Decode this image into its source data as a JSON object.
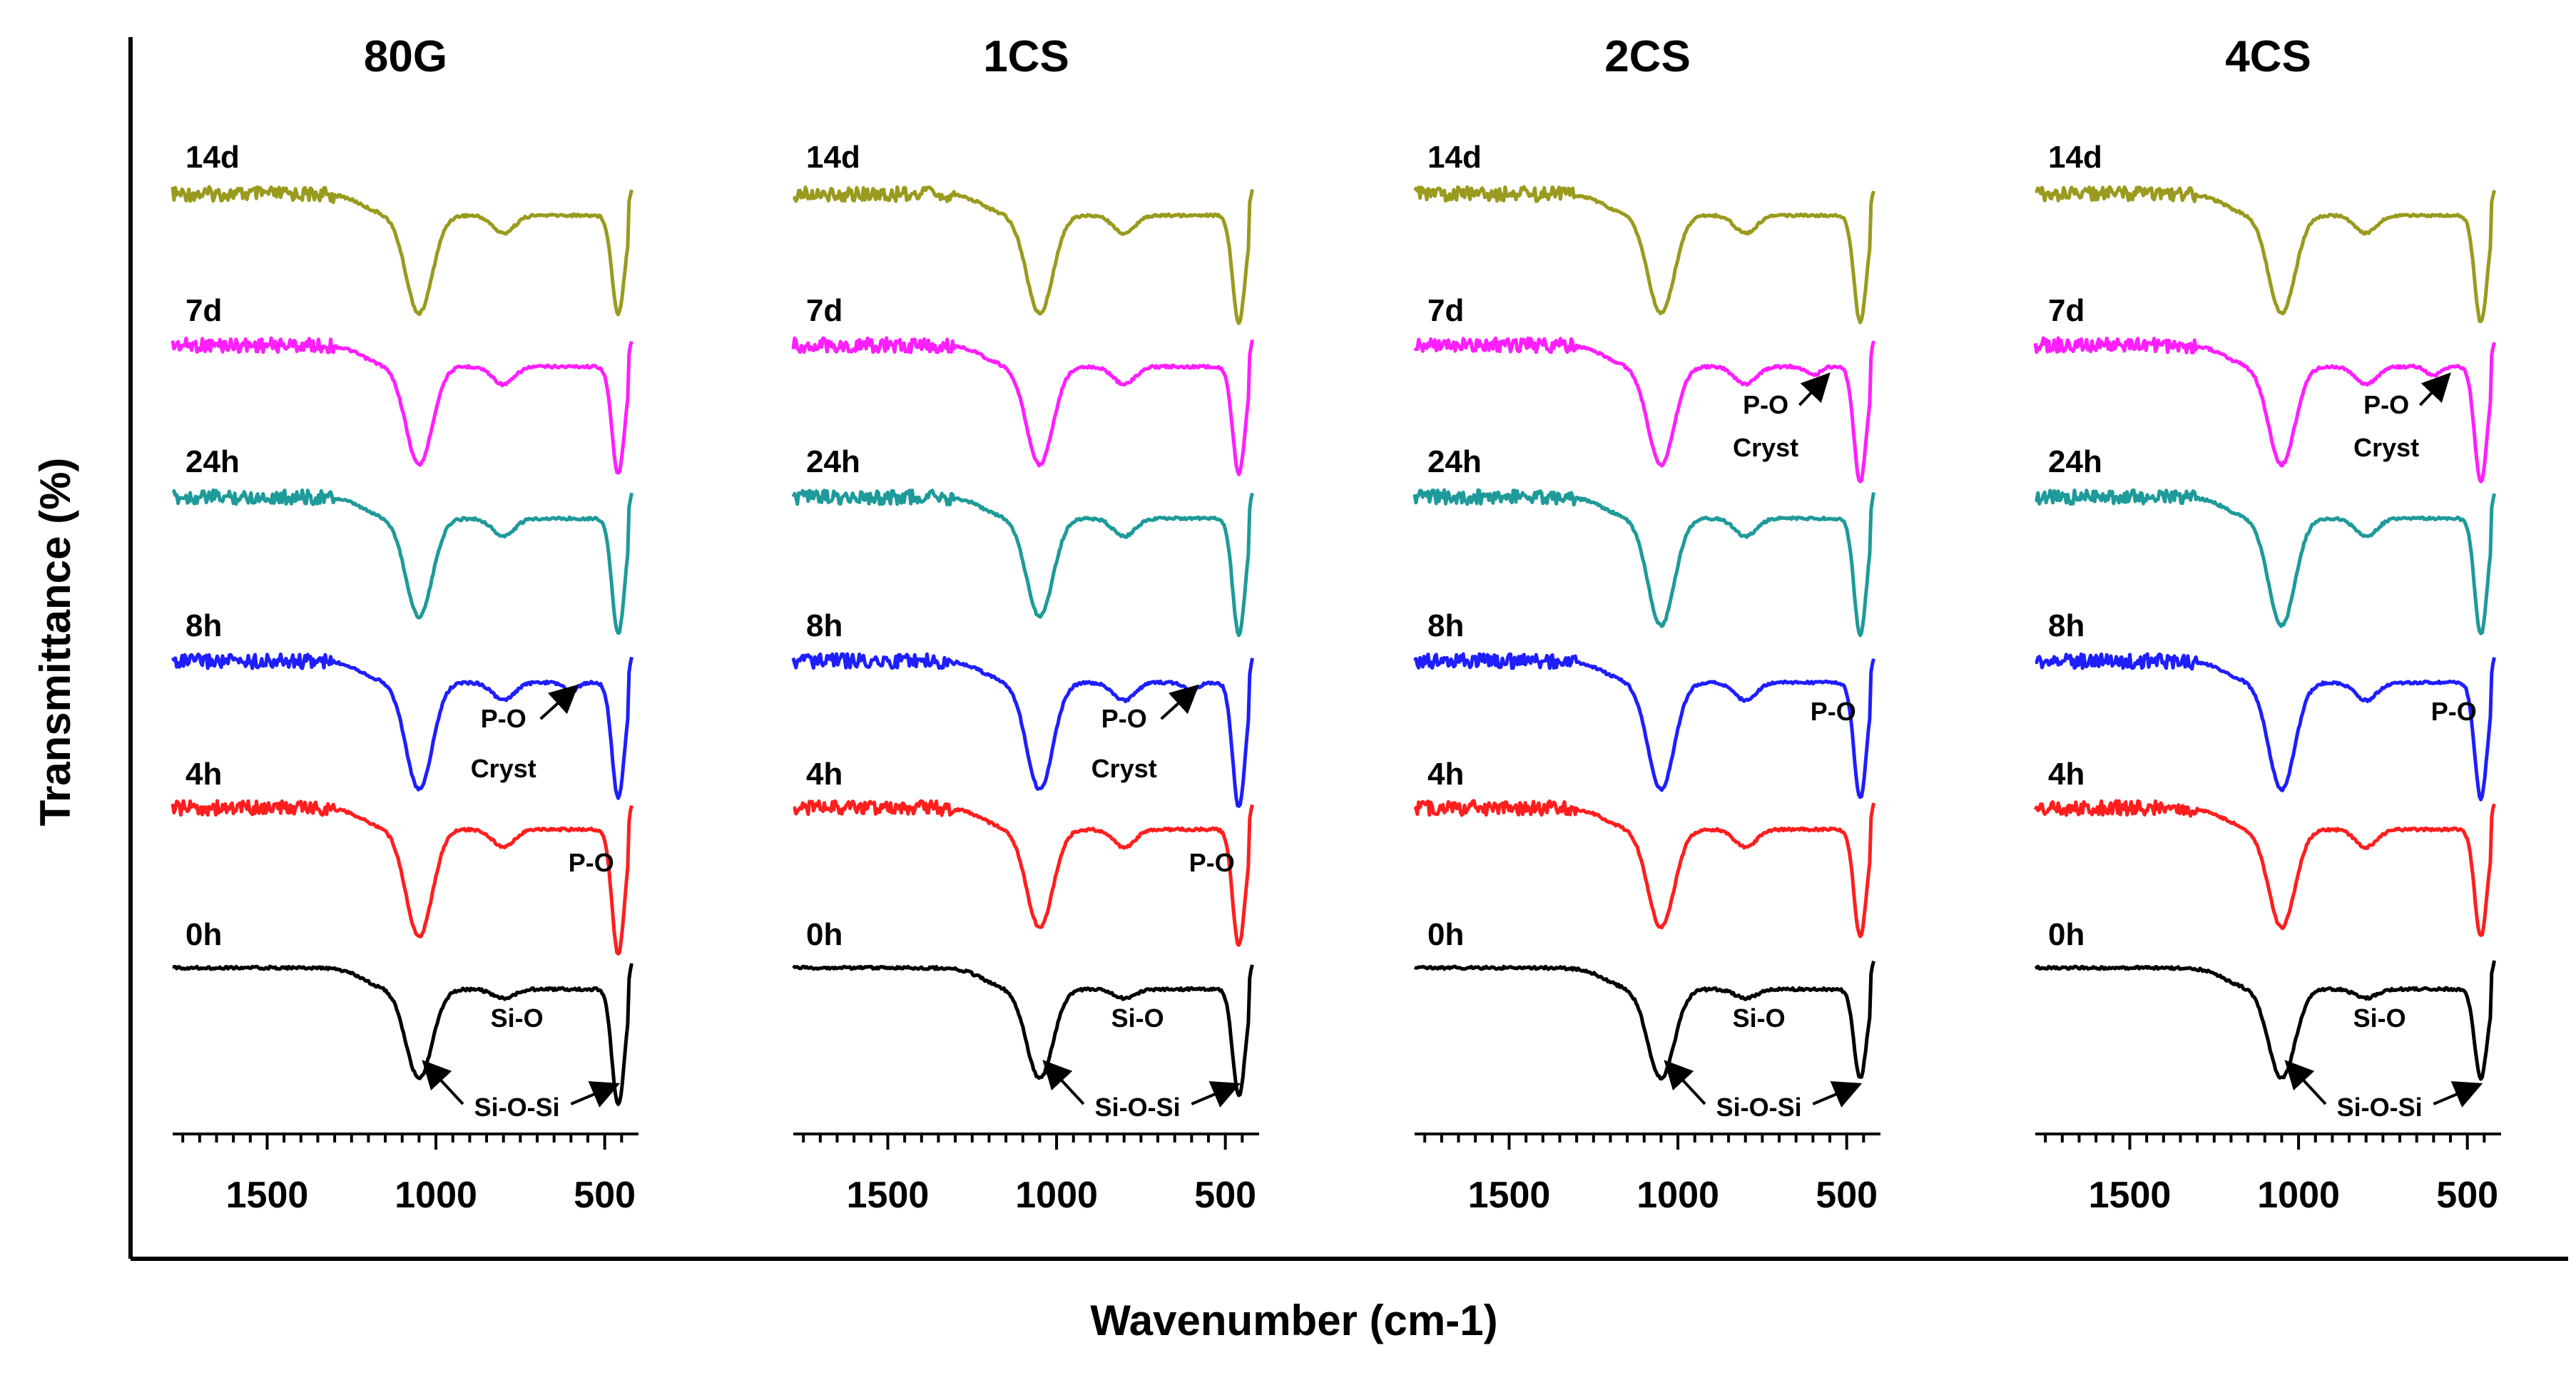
{
  "chart_data": {
    "type": "line",
    "ylabel": "Transmittance (%)",
    "xlabel": "Wavenumber (cm-1)",
    "xlim": [
      1780,
      400
    ],
    "x_ticks": [
      1500,
      1000,
      500
    ],
    "time_points": [
      "14d",
      "7d",
      "24h",
      "8h",
      "4h",
      "0h"
    ],
    "series_colors": {
      "14d": "#9a9a1e",
      "7d": "#ff1eff",
      "24h": "#1e9a9a",
      "8h": "#1e1eff",
      "4h": "#ff1e1e",
      "0h": "#000000"
    },
    "panels": [
      {
        "title": "80G",
        "series": [
          {
            "name": "14d",
            "bands": [
              [
                1050,
                0.55
              ],
              [
                800,
                0.1
              ],
              [
                460,
                0.55
              ]
            ],
            "crystal_band": false
          },
          {
            "name": "7d",
            "bands": [
              [
                1050,
                0.55
              ],
              [
                800,
                0.1
              ],
              [
                460,
                0.6
              ]
            ],
            "crystal_band": false
          },
          {
            "name": "24h",
            "bands": [
              [
                1050,
                0.55
              ],
              [
                800,
                0.1
              ],
              [
                460,
                0.65
              ]
            ],
            "crystal_band": false
          },
          {
            "name": "8h",
            "bands": [
              [
                1050,
                0.6
              ],
              [
                800,
                0.1
              ],
              [
                600,
                0.05
              ],
              [
                460,
                0.65
              ]
            ],
            "crystal_band": true
          },
          {
            "name": "4h",
            "bands": [
              [
                1050,
                0.6
              ],
              [
                800,
                0.1
              ],
              [
                460,
                0.7
              ]
            ],
            "crystal_band": false
          },
          {
            "name": "0h",
            "bands": [
              [
                1050,
                0.5
              ],
              [
                800,
                0.05
              ],
              [
                460,
                0.65
              ]
            ],
            "crystal_band": false
          }
        ],
        "annotations": {
          "si_o": "Si-O",
          "si_o_si": "Si-O-Si",
          "p_o_4h": "P-O",
          "p_o_8h": "P-O",
          "cryst_8h": "Cryst"
        }
      },
      {
        "title": "1CS",
        "series": [
          {
            "name": "14d",
            "bands": [
              [
                1050,
                0.55
              ],
              [
                800,
                0.1
              ],
              [
                460,
                0.6
              ]
            ],
            "crystal_band": false
          },
          {
            "name": "7d",
            "bands": [
              [
                1050,
                0.55
              ],
              [
                800,
                0.1
              ],
              [
                460,
                0.6
              ]
            ],
            "crystal_band": false
          },
          {
            "name": "24h",
            "bands": [
              [
                1050,
                0.55
              ],
              [
                800,
                0.1
              ],
              [
                460,
                0.65
              ]
            ],
            "crystal_band": false
          },
          {
            "name": "8h",
            "bands": [
              [
                1050,
                0.6
              ],
              [
                800,
                0.1
              ],
              [
                600,
                0.05
              ],
              [
                460,
                0.7
              ]
            ],
            "crystal_band": true
          },
          {
            "name": "4h",
            "bands": [
              [
                1050,
                0.55
              ],
              [
                800,
                0.1
              ],
              [
                460,
                0.65
              ]
            ],
            "crystal_band": false
          },
          {
            "name": "0h",
            "bands": [
              [
                1050,
                0.5
              ],
              [
                800,
                0.05
              ],
              [
                460,
                0.6
              ]
            ],
            "crystal_band": false
          }
        ],
        "annotations": {
          "si_o": "Si-O",
          "si_o_si": "Si-O-Si",
          "p_o_4h": "P-O",
          "p_o_8h": "P-O",
          "cryst_8h": "Cryst"
        }
      },
      {
        "title": "2CS",
        "series": [
          {
            "name": "14d",
            "bands": [
              [
                1050,
                0.55
              ],
              [
                800,
                0.1
              ],
              [
                460,
                0.6
              ]
            ],
            "crystal_band": false
          },
          {
            "name": "7d",
            "bands": [
              [
                1050,
                0.55
              ],
              [
                800,
                0.1
              ],
              [
                600,
                0.05
              ],
              [
                460,
                0.65
              ]
            ],
            "crystal_band": true
          },
          {
            "name": "24h",
            "bands": [
              [
                1050,
                0.6
              ],
              [
                800,
                0.1
              ],
              [
                460,
                0.65
              ]
            ],
            "crystal_band": false
          },
          {
            "name": "8h",
            "bands": [
              [
                1050,
                0.6
              ],
              [
                800,
                0.1
              ],
              [
                460,
                0.65
              ]
            ],
            "crystal_band": false
          },
          {
            "name": "4h",
            "bands": [
              [
                1050,
                0.55
              ],
              [
                800,
                0.1
              ],
              [
                460,
                0.6
              ]
            ],
            "crystal_band": false
          },
          {
            "name": "0h",
            "bands": [
              [
                1050,
                0.5
              ],
              [
                800,
                0.05
              ],
              [
                460,
                0.5
              ]
            ],
            "crystal_band": false
          }
        ],
        "annotations": {
          "si_o": "Si-O",
          "si_o_si": "Si-O-Si",
          "p_o_8h": "P-O",
          "p_o_7d": "P-O",
          "cryst_7d": "Cryst"
        }
      },
      {
        "title": "4CS",
        "series": [
          {
            "name": "14d",
            "bands": [
              [
                1050,
                0.55
              ],
              [
                800,
                0.1
              ],
              [
                460,
                0.6
              ]
            ],
            "crystal_band": false
          },
          {
            "name": "7d",
            "bands": [
              [
                1050,
                0.55
              ],
              [
                800,
                0.1
              ],
              [
                600,
                0.05
              ],
              [
                460,
                0.65
              ]
            ],
            "crystal_band": true
          },
          {
            "name": "24h",
            "bands": [
              [
                1050,
                0.6
              ],
              [
                800,
                0.1
              ],
              [
                460,
                0.65
              ]
            ],
            "crystal_band": false
          },
          {
            "name": "8h",
            "bands": [
              [
                1050,
                0.6
              ],
              [
                800,
                0.1
              ],
              [
                460,
                0.65
              ]
            ],
            "crystal_band": false
          },
          {
            "name": "4h",
            "bands": [
              [
                1050,
                0.55
              ],
              [
                800,
                0.1
              ],
              [
                460,
                0.6
              ]
            ],
            "crystal_band": false
          },
          {
            "name": "0h",
            "bands": [
              [
                1050,
                0.5
              ],
              [
                800,
                0.05
              ],
              [
                460,
                0.5
              ]
            ],
            "crystal_band": false
          }
        ],
        "annotations": {
          "si_o": "Si-O",
          "si_o_si": "Si-O-Si",
          "p_o_8h": "P-O",
          "p_o_7d": "P-O",
          "cryst_7d": "Cryst"
        }
      }
    ]
  }
}
